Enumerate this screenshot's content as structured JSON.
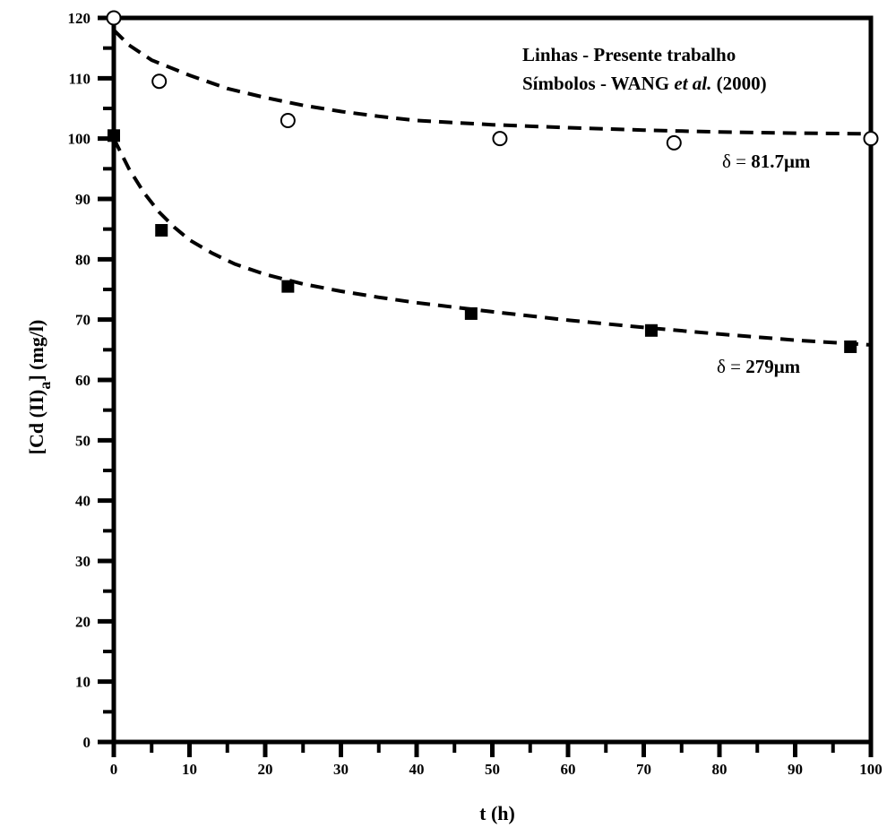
{
  "chart_data": {
    "type": "scatter",
    "xlabel": "t (h)",
    "ylabel_main": "[Cd (II)",
    "ylabel_sub": "a",
    "ylabel_end": "] (mg/l)",
    "xlim": [
      0,
      100
    ],
    "ylim": [
      0,
      120
    ],
    "x_ticks": [
      0,
      10,
      20,
      30,
      40,
      50,
      60,
      70,
      80,
      90,
      100
    ],
    "y_ticks": [
      0,
      10,
      20,
      30,
      40,
      50,
      60,
      70,
      80,
      90,
      100,
      110,
      120
    ],
    "x_tick_labels": [
      "0",
      "10",
      "20",
      "30",
      "40",
      "50",
      "60",
      "70",
      "80",
      "90",
      "100"
    ],
    "y_tick_labels": [
      "0",
      "10",
      "20",
      "30",
      "40",
      "50",
      "60",
      "70",
      "80",
      "90",
      "100",
      "110",
      "120"
    ],
    "grid": false,
    "legend": {
      "line1": "Linhas - Presente trabalho",
      "line2_prefix": "Símbolos - WANG ",
      "line2_italic": "et al.",
      "line2_suffix": " (2000)"
    },
    "series": [
      {
        "name": "δ = 81.7μm",
        "label_delta": "δ = ",
        "label_value": "81.7μm",
        "marker": "open-circle",
        "points": [
          [
            0,
            120
          ],
          [
            6,
            109.5
          ],
          [
            23,
            103
          ],
          [
            51,
            100
          ],
          [
            74,
            99.3
          ],
          [
            100,
            100
          ]
        ],
        "fit": [
          [
            0,
            118
          ],
          [
            2,
            115.5
          ],
          [
            5,
            113
          ],
          [
            10,
            110.5
          ],
          [
            15,
            108.3
          ],
          [
            20,
            106.8
          ],
          [
            25,
            105.5
          ],
          [
            30,
            104.5
          ],
          [
            35,
            103.7
          ],
          [
            40,
            103
          ],
          [
            50,
            102.3
          ],
          [
            60,
            101.8
          ],
          [
            70,
            101.4
          ],
          [
            80,
            101.1
          ],
          [
            90,
            100.9
          ],
          [
            100,
            100.8
          ]
        ]
      },
      {
        "name": "δ = 279μm",
        "label_delta": "δ = ",
        "label_value": "279μm",
        "marker": "filled-square",
        "points": [
          [
            0,
            100.5
          ],
          [
            6.3,
            84.8
          ],
          [
            23,
            75.5
          ],
          [
            47.2,
            71
          ],
          [
            71,
            68.2
          ],
          [
            97.3,
            65.5
          ]
        ],
        "fit": [
          [
            0,
            100
          ],
          [
            2,
            95
          ],
          [
            4,
            91
          ],
          [
            6,
            87.8
          ],
          [
            8,
            85.3
          ],
          [
            10,
            83.2
          ],
          [
            13,
            81
          ],
          [
            16,
            79.2
          ],
          [
            20,
            77.5
          ],
          [
            25,
            75.9
          ],
          [
            30,
            74.7
          ],
          [
            35,
            73.7
          ],
          [
            40,
            72.8
          ],
          [
            50,
            71.3
          ],
          [
            60,
            69.9
          ],
          [
            70,
            68.7
          ],
          [
            80,
            67.6
          ],
          [
            90,
            66.6
          ],
          [
            100,
            65.8
          ]
        ]
      }
    ]
  }
}
